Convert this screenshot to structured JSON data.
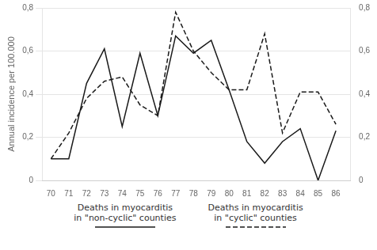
{
  "chart_data": {
    "type": "line",
    "ylabel": "Annual incidence per 100.000",
    "x": [
      70,
      71,
      72,
      73,
      74,
      75,
      76,
      77,
      78,
      79,
      80,
      81,
      82,
      83,
      84,
      85,
      86
    ],
    "series": [
      {
        "name": "Deaths in myocarditis\nin \"non-cyclic\" counties",
        "color": "#1a1a1a",
        "line_style": "solid",
        "values": [
          0.1,
          0.1,
          0.45,
          0.61,
          0.25,
          0.59,
          0.3,
          0.67,
          0.59,
          0.65,
          0.42,
          0.18,
          0.08,
          0.18,
          0.24,
          0.0,
          0.23
        ]
      },
      {
        "name": "Deaths in myocarditis\nin \"cyclic\" counties",
        "color": "#1a1a1a",
        "line_style": "dashed",
        "values": [
          0.1,
          0.22,
          0.38,
          0.46,
          0.48,
          0.35,
          0.3,
          0.78,
          0.6,
          0.5,
          0.42,
          0.42,
          0.68,
          0.22,
          0.41,
          0.41,
          0.26
        ]
      }
    ],
    "xlim": [
      69.5,
      86.8
    ],
    "xticks": [
      70,
      71,
      72,
      73,
      74,
      75,
      76,
      77,
      78,
      79,
      80,
      81,
      82,
      83,
      84,
      85,
      86
    ],
    "ylim": [
      0,
      0.8
    ],
    "yticks": [
      0,
      {
        "value": 0.2,
        "label": "0,2"
      },
      {
        "value": 0.4,
        "label": "0,4"
      },
      {
        "value": 0.6,
        "label": "0,6"
      },
      {
        "value": 0.8,
        "label": "0,8"
      }
    ],
    "y2lim": [
      0,
      0.8
    ],
    "y2ticks": [
      0,
      {
        "value": 0.2,
        "label": "0,2"
      },
      {
        "value": 0.4,
        "label": "0,4"
      },
      {
        "value": 0.6,
        "label": "0,6"
      },
      {
        "value": 0.8,
        "label": "0,8"
      }
    ],
    "grid": "y",
    "legend": "bottom"
  }
}
